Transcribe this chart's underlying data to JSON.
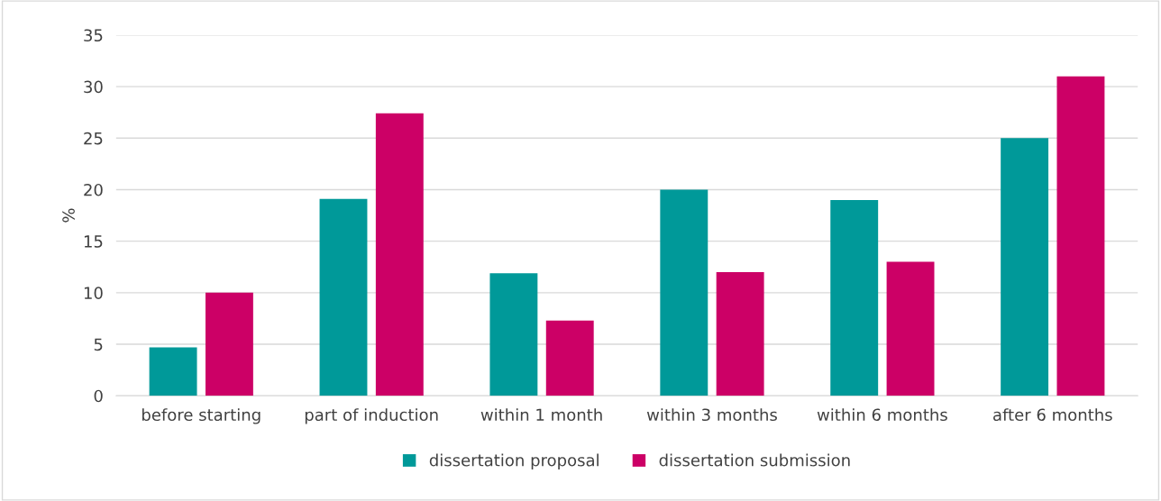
{
  "chart_data": {
    "type": "bar",
    "ylabel": "%",
    "categories": [
      "before starting",
      "part of induction",
      "within 1 month",
      "within 3 months",
      "within 6 months",
      "after 6 months"
    ],
    "series": [
      {
        "name": "dissertation proposal",
        "color": "#009999",
        "values": [
          4.7,
          19.1,
          11.9,
          20.0,
          19.0,
          25.0
        ]
      },
      {
        "name": "dissertation submission",
        "color": "#cc0066",
        "values": [
          10.0,
          27.4,
          7.3,
          12.0,
          13.0,
          31.0
        ]
      }
    ],
    "ylim": [
      0,
      35
    ],
    "yticks": [
      0,
      5,
      10,
      15,
      20,
      25,
      30,
      35
    ],
    "grid": "y",
    "legend": "bottom"
  }
}
